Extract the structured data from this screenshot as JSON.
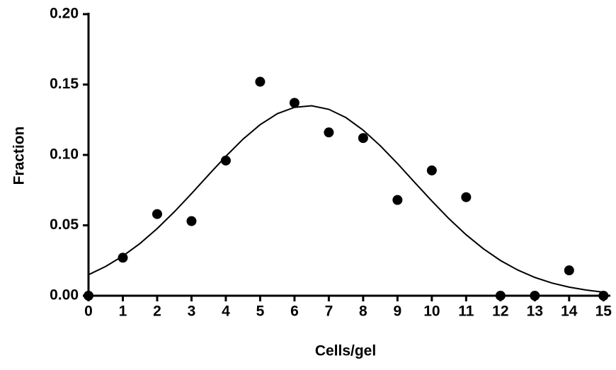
{
  "chart_data": {
    "type": "scatter",
    "xlabel": "Cells/gel",
    "ylabel": "Fraction",
    "xlim": [
      0,
      15.2
    ],
    "ylim": [
      0,
      0.2
    ],
    "xticks": [
      0,
      1,
      2,
      3,
      4,
      5,
      6,
      7,
      8,
      9,
      10,
      11,
      12,
      13,
      14,
      15
    ],
    "yticks": [
      {
        "value": 0,
        "label": "0.00"
      },
      0.05,
      {
        "value": 0.1,
        "label": "0.10"
      },
      0.15,
      {
        "value": 0.2,
        "label": "0.20"
      }
    ],
    "series": [
      {
        "type": "scatter",
        "color": "#000000",
        "x": [
          0,
          1,
          2,
          3,
          4,
          5,
          6,
          7,
          8,
          9,
          10,
          11,
          12,
          13,
          14,
          15
        ],
        "values": [
          0,
          0.027,
          0.058,
          0.053,
          0.096,
          0.152,
          0.137,
          0.116,
          0.112,
          0.068,
          0.089,
          0.07,
          0,
          0,
          0.018,
          0
        ]
      },
      {
        "type": "line",
        "color": "#000000",
        "x": [
          0,
          0.5,
          1,
          1.5,
          2,
          2.5,
          3,
          3.5,
          4,
          4.5,
          5,
          5.5,
          6,
          6.5,
          7,
          7.5,
          8,
          8.5,
          9,
          9.5,
          10,
          10.5,
          11,
          11.5,
          12,
          12.5,
          13,
          13.5,
          14,
          14.5,
          15
        ],
        "values": [
          0.0149,
          0.0208,
          0.0282,
          0.0371,
          0.0477,
          0.0596,
          0.0725,
          0.0859,
          0.099,
          0.1112,
          0.1215,
          0.1293,
          0.1338,
          0.1349,
          0.1324,
          0.1265,
          0.1176,
          0.1065,
          0.0939,
          0.0805,
          0.0673,
          0.0547,
          0.0433,
          0.0334,
          0.025,
          0.0183,
          0.013,
          0.009,
          0.0061,
          0.004,
          0.0025
        ]
      }
    ]
  }
}
